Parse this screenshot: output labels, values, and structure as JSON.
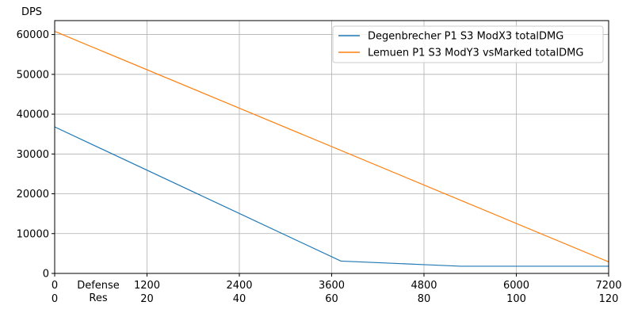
{
  "chart_data": {
    "type": "line",
    "title": "",
    "ylabel": "DPS",
    "xlabel": "",
    "x_secondary_label": [
      "Defense",
      "Res"
    ],
    "xlim": [
      0,
      7200
    ],
    "ylim": [
      0,
      63500
    ],
    "x_ticks": [
      0,
      1200,
      2400,
      3600,
      4800,
      6000,
      7200
    ],
    "x_ticks_secondary": [
      "0",
      "20",
      "40",
      "60",
      "80",
      "100",
      "120"
    ],
    "y_ticks": [
      0,
      10000,
      20000,
      30000,
      40000,
      50000,
      60000
    ],
    "grid": true,
    "legend_position": "top-right",
    "series": [
      {
        "name": "Degenbrecher P1 S3 ModX3 totalDMG",
        "color": "#1f77b4",
        "x": [
          0,
          3720,
          4800,
          5280,
          6000,
          7200
        ],
        "y": [
          36800,
          3100,
          2200,
          1800,
          1800,
          1800
        ]
      },
      {
        "name": "Lemuen P1 S3 ModY3 vsMarked totalDMG",
        "color": "#ff7f0e",
        "x": [
          0,
          7200
        ],
        "y": [
          60800,
          2900
        ]
      }
    ]
  }
}
